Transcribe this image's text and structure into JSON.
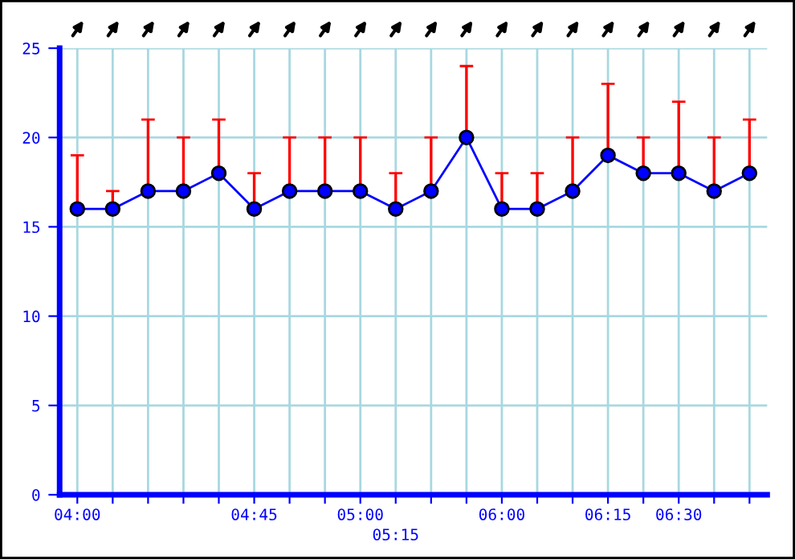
{
  "chart_data": {
    "type": "line",
    "categories": [
      "04:00",
      null,
      null,
      null,
      null,
      "04:45",
      null,
      null,
      "05:00",
      "05:15",
      null,
      null,
      "06:00",
      null,
      null,
      "06:15",
      null,
      "06:30",
      null,
      null
    ],
    "series": [
      {
        "color": "#0000ff",
        "values": [
          16,
          16,
          17,
          17,
          18,
          16,
          17,
          17,
          17,
          16,
          17,
          20,
          16,
          16,
          17,
          19,
          18,
          18,
          17,
          18
        ],
        "errors": [
          [
            16,
            19
          ],
          [
            16,
            17
          ],
          [
            17,
            21
          ],
          [
            17,
            20
          ],
          [
            18,
            21
          ],
          [
            16,
            18
          ],
          [
            17,
            20
          ],
          [
            17,
            20
          ],
          [
            17,
            20
          ],
          [
            16,
            18
          ],
          [
            17,
            20
          ],
          [
            20,
            24
          ],
          [
            16,
            18
          ],
          [
            16,
            18
          ],
          [
            17,
            20
          ],
          [
            19,
            23
          ],
          [
            18,
            20
          ],
          [
            18,
            22
          ],
          [
            17,
            20
          ],
          [
            18,
            21
          ]
        ]
      }
    ],
    "ylim": [
      0,
      25
    ],
    "yticks": [
      0,
      5,
      10,
      15,
      20,
      25
    ],
    "grid": true,
    "marker": "circle",
    "line_style": "solid"
  }
}
